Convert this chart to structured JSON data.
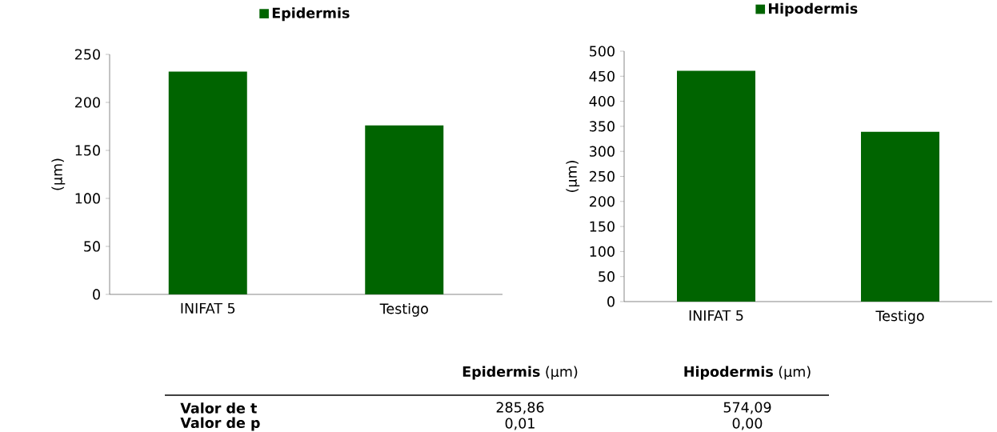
{
  "chart_data": [
    {
      "type": "bar",
      "categories": [
        "INIFAT 5",
        "Testigo"
      ],
      "ylabel": "(µm)",
      "ylim": [
        0,
        250
      ],
      "yticks": [
        0,
        50,
        100,
        150,
        200,
        250
      ],
      "legend": "top",
      "series": [
        {
          "name": "Epidermis",
          "color": "#006400",
          "values": [
            232,
            176
          ]
        }
      ]
    },
    {
      "type": "bar",
      "categories": [
        "INIFAT 5",
        "Testigo"
      ],
      "ylabel": "(µm)",
      "ylim": [
        0,
        500
      ],
      "yticks": [
        0,
        50,
        100,
        150,
        200,
        250,
        300,
        350,
        400,
        450,
        500
      ],
      "legend": "top",
      "series": [
        {
          "name": "Hipodermis",
          "color": "#006400",
          "values": [
            461,
            339
          ]
        }
      ]
    },
    {
      "type": "other",
      "annotations": [
        "**Epidermis** (µm)",
        "**Hipodermis** (µm)",
        "**Valor de t**",
        "285,86",
        "574,09",
        "**Valor de p**",
        "0,01",
        "0,00"
      ]
    }
  ]
}
